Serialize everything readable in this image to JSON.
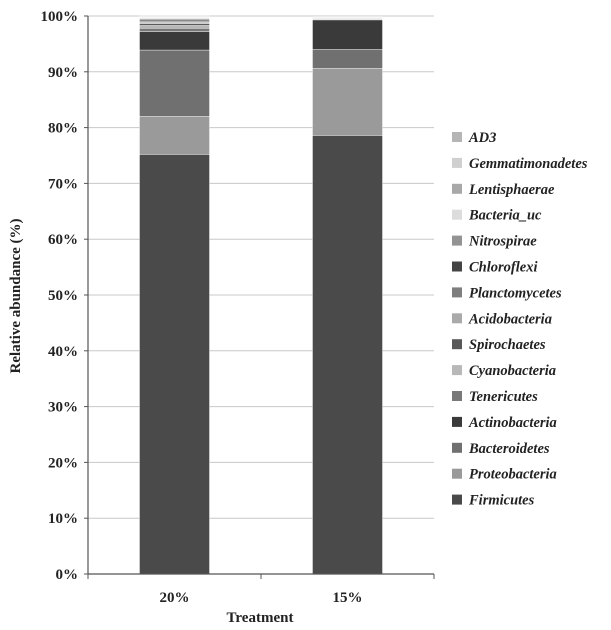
{
  "chart_data": {
    "type": "bar",
    "stacked": true,
    "percent": true,
    "categories": [
      "20%",
      "15%"
    ],
    "xlabel": "Treatment",
    "ylabel": "Relative abundance (%)",
    "ylim": [
      0,
      100
    ],
    "yticks": [
      "0%",
      "10%",
      "20%",
      "30%",
      "40%",
      "50%",
      "60%",
      "70%",
      "80%",
      "90%",
      "100%"
    ],
    "grid": true,
    "legend_position": "right",
    "series": [
      {
        "name": "Firmicutes",
        "color": "#4a4a4a",
        "values": [
          75.2,
          78.6
        ]
      },
      {
        "name": "Proteobacteria",
        "color": "#9a9a9a",
        "values": [
          6.8,
          12.0
        ]
      },
      {
        "name": "Bacteroidetes",
        "color": "#707070",
        "values": [
          11.9,
          3.4
        ]
      },
      {
        "name": "Actinobacteria",
        "color": "#3a3a3a",
        "values": [
          3.3,
          5.3
        ]
      },
      {
        "name": "Tenericutes",
        "color": "#787878",
        "values": [
          0.6,
          0.1
        ]
      },
      {
        "name": "Cyanobacteria",
        "color": "#b8b8b8",
        "values": [
          0.5,
          0.1
        ]
      },
      {
        "name": "Spirochaetes",
        "color": "#585858",
        "values": [
          0.3,
          0.1
        ]
      },
      {
        "name": "Acidobacteria",
        "color": "#aaaaaa",
        "values": [
          0.3,
          0.1
        ]
      },
      {
        "name": "Planctomycetes",
        "color": "#7e7e7e",
        "values": [
          0.2,
          0.05
        ]
      },
      {
        "name": "Chloroflexi",
        "color": "#444444",
        "values": [
          0.2,
          0.05
        ]
      },
      {
        "name": "Nitrospirae",
        "color": "#939393",
        "values": [
          0.2,
          0.05
        ]
      },
      {
        "name": "Bacteria_uc",
        "color": "#dcdcdc",
        "values": [
          0.2,
          0.05
        ]
      },
      {
        "name": "Lentisphaerae",
        "color": "#a8a8a8",
        "values": [
          0.1,
          0.0
        ]
      },
      {
        "name": "Gemmatimonadetes",
        "color": "#d0d0d0",
        "values": [
          0.1,
          0.0
        ]
      },
      {
        "name": "AD3",
        "color": "#b5b5b5",
        "values": [
          0.1,
          0.0
        ]
      }
    ]
  }
}
